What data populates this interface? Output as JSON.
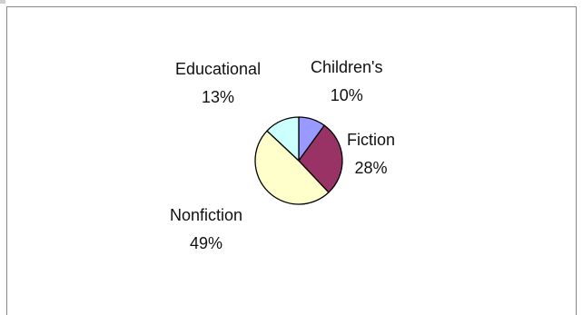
{
  "chart_data": {
    "type": "pie",
    "title": "",
    "slices": [
      {
        "label": "Children's",
        "percent_label": "10%",
        "value": 10,
        "color": "#9999ff"
      },
      {
        "label": "Fiction",
        "percent_label": "28%",
        "value": 28,
        "color": "#993366"
      },
      {
        "label": "Nonfiction",
        "percent_label": "49%",
        "value": 49,
        "color": "#ffffcc"
      },
      {
        "label": "Educational",
        "percent_label": "13%",
        "value": 13,
        "color": "#ccffff"
      }
    ],
    "slice_outline_color": "#000000",
    "legend": "none",
    "data_labels": "category and percent"
  }
}
